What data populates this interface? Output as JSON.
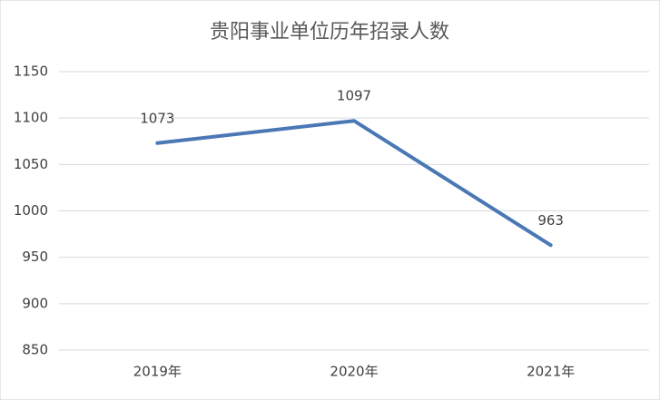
{
  "chart_data": {
    "type": "line",
    "title": "贵阳事业单位历年招录人数",
    "categories": [
      "2019年",
      "2020年",
      "2021年"
    ],
    "values": [
      1073,
      1097,
      963
    ],
    "color": "#4a78b5",
    "ylim": [
      850,
      1150
    ],
    "yticks": [
      850,
      900,
      950,
      1000,
      1050,
      1100,
      1150
    ],
    "grid": true
  }
}
